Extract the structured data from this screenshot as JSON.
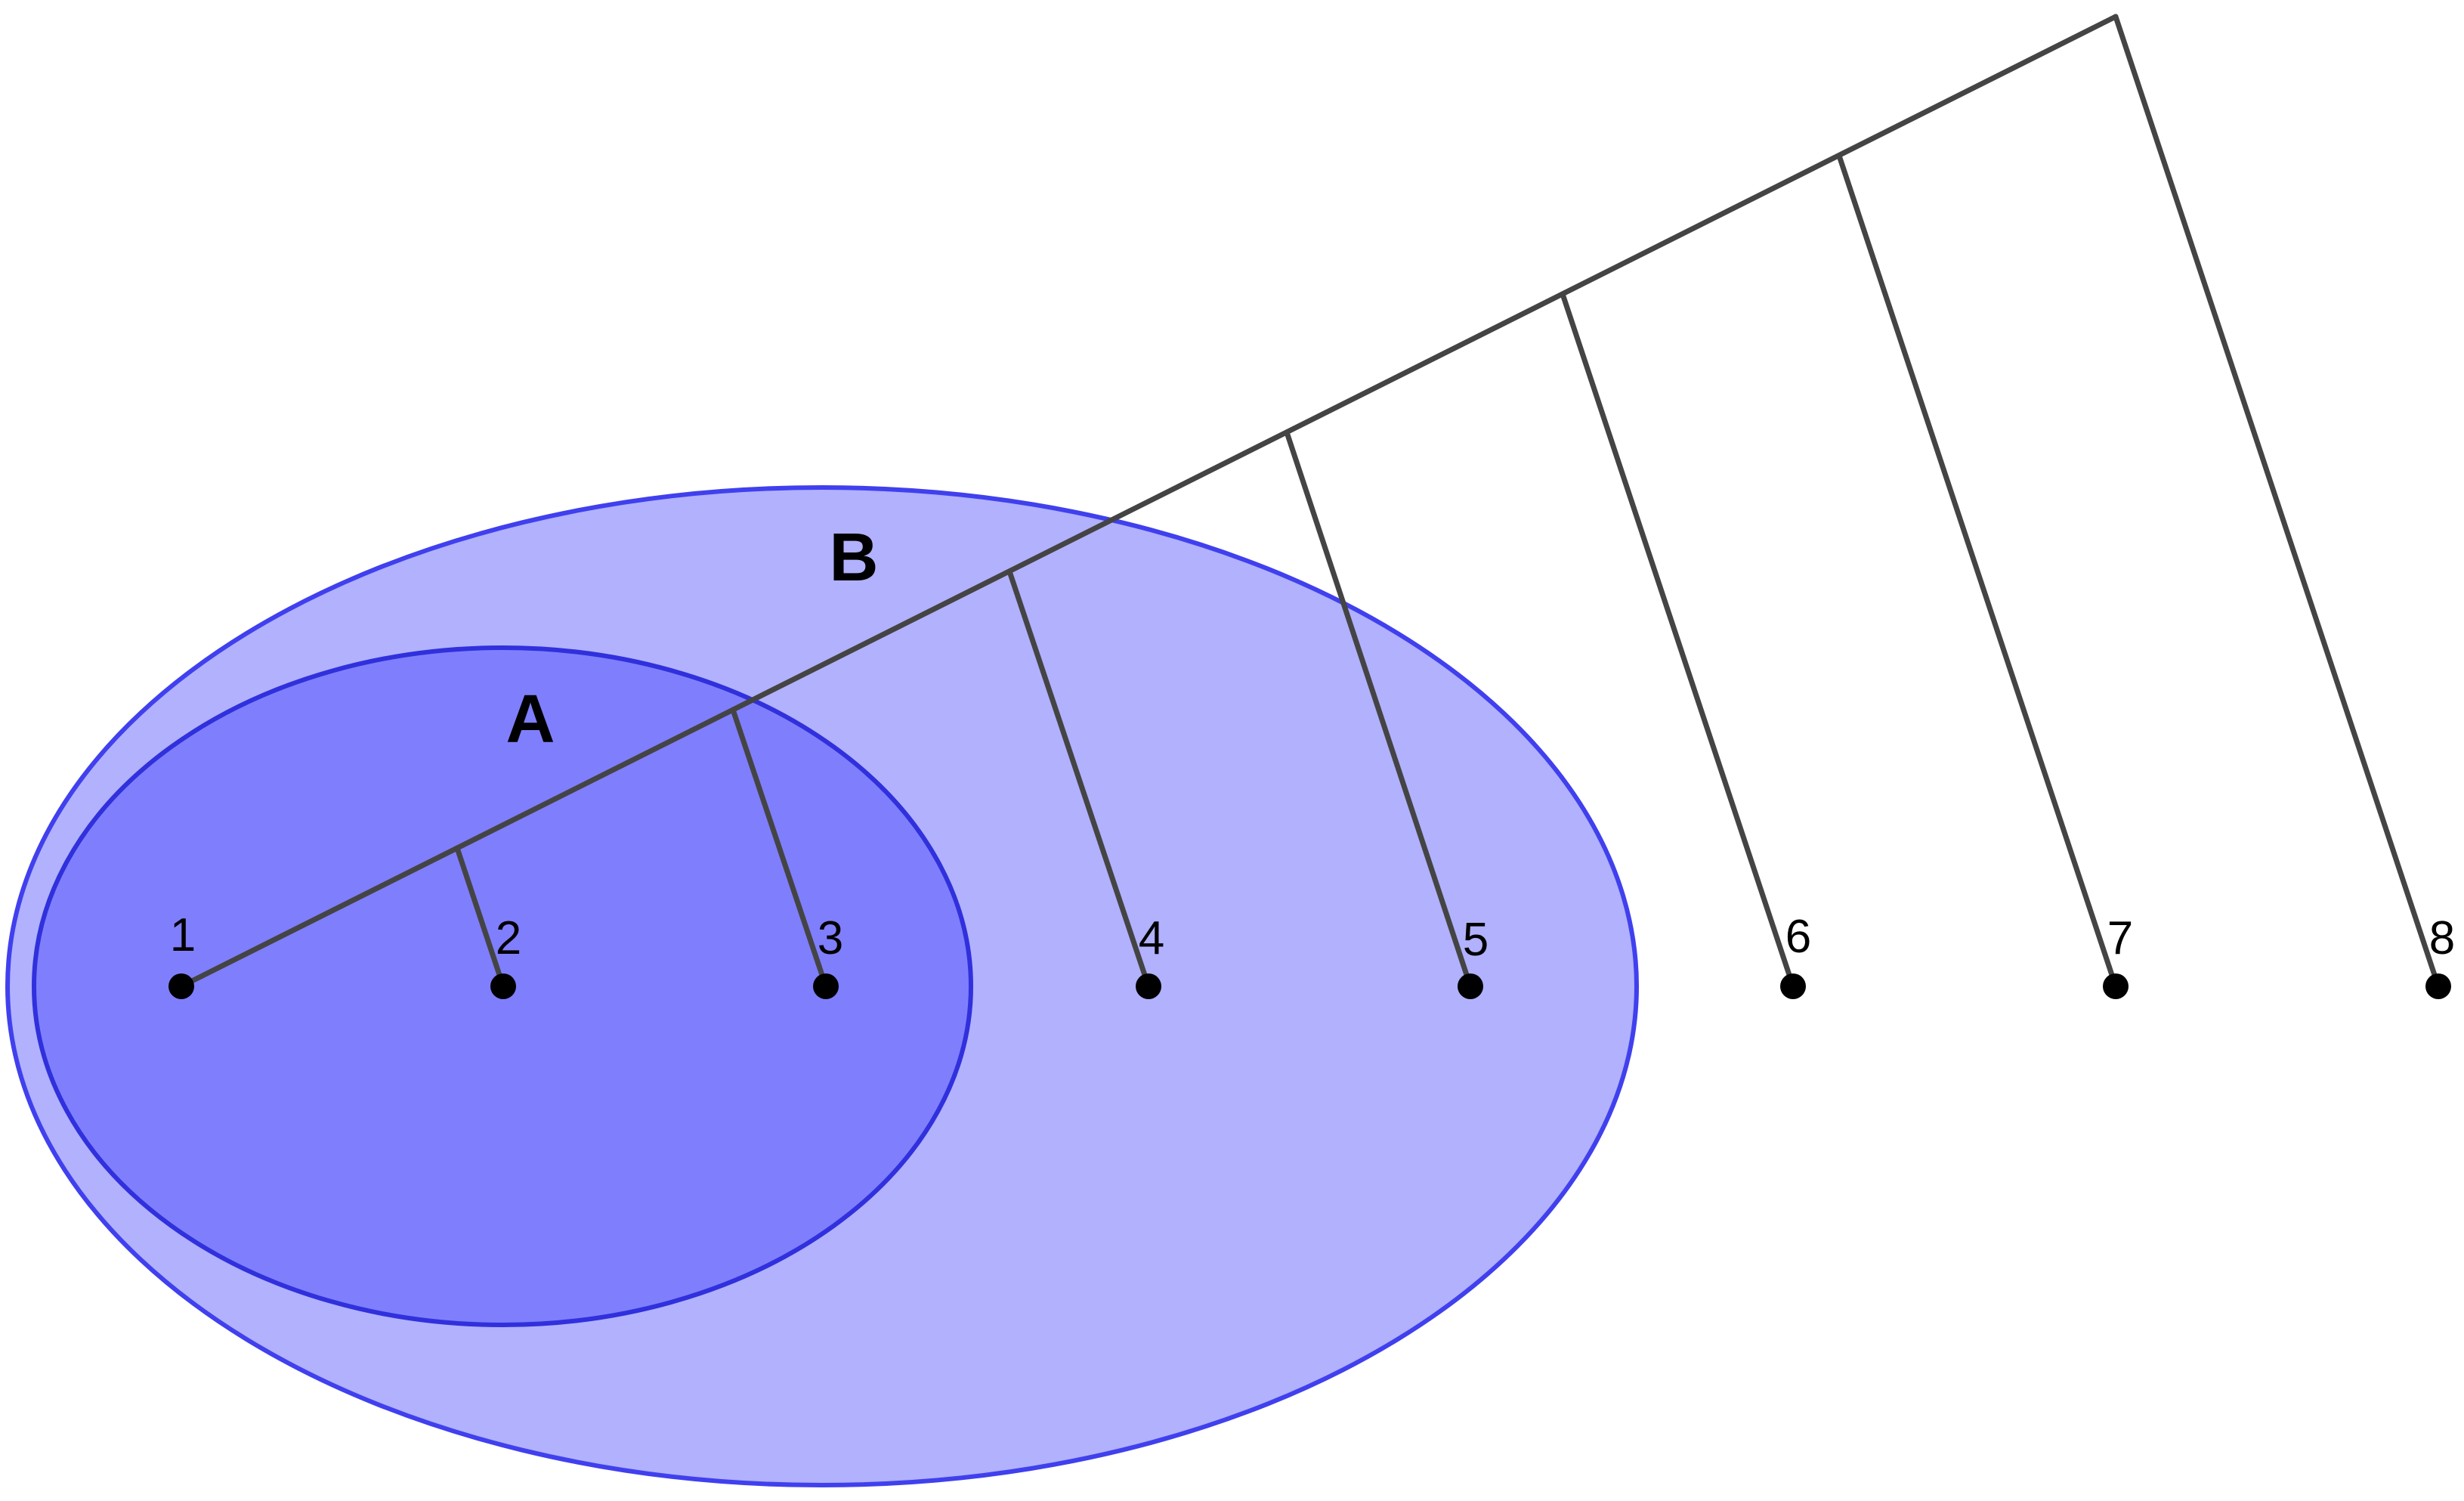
{
  "sets": [
    {
      "id": "B",
      "label": "B",
      "fill": "#b1b1fd",
      "stroke": "#4040ee"
    },
    {
      "id": "A",
      "label": "A",
      "fill": "#7f7ffd",
      "stroke": "#3030dd"
    }
  ],
  "leaves": [
    "1",
    "2",
    "3",
    "4",
    "5",
    "6",
    "7",
    "8"
  ],
  "colors": {
    "tree_line": "#444444",
    "dot": "#000000",
    "background": "#ffffff"
  }
}
